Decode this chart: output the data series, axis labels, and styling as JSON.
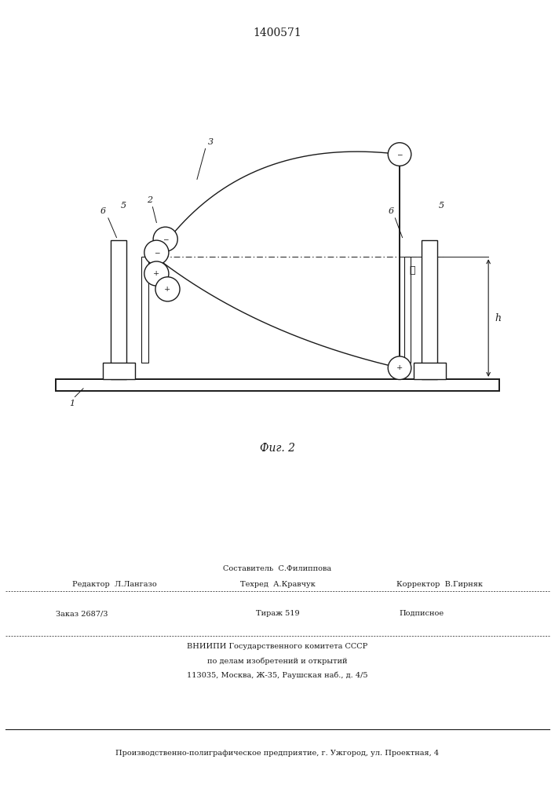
{
  "title": "1400571",
  "fig_label": "Фиг. 2",
  "bg_color": "#ffffff",
  "line_color": "#1a1a1a",
  "fig_width": 7.07,
  "fig_height": 10.0,
  "footer_line1": "Составитель  С.Филиппова",
  "footer_line2_left": "Редактор  Л.Лангазо",
  "footer_line2_mid": "Техред  А.Кравчук",
  "footer_line2_right": "Корректор  В.Гирняк",
  "footer_line3_left": "Заказ 2687/3",
  "footer_line3_mid": "Тираж 519",
  "footer_line3_right": "Подписное",
  "footer_line4": "ВНИИПИ Государственного комитета СССР",
  "footer_line5": "по делам изобретений и открытий",
  "footer_line6": "113035, Москва, Ж-35, Раушская наб., д. 4/5",
  "footer_line7": "Производственно-полиграфическое предприятие, г. Ужгород, ул. Проектная, 4"
}
